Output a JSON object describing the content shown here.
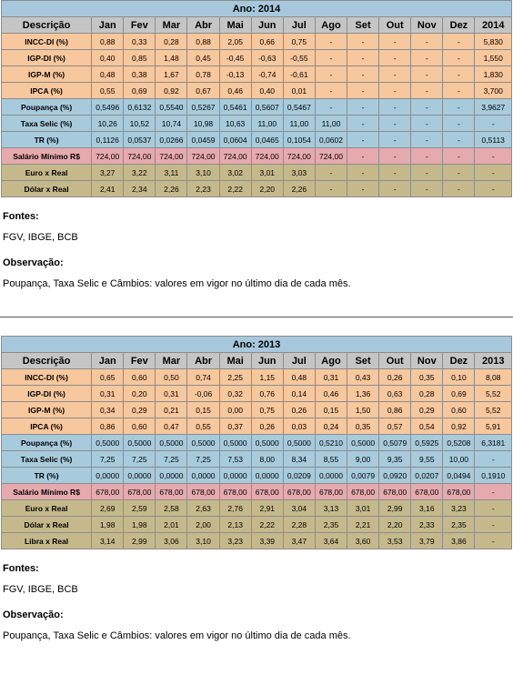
{
  "tables": [
    {
      "title": "Ano: 2014",
      "headers": [
        "Descrição",
        "Jan",
        "Fev",
        "Mar",
        "Abr",
        "Mai",
        "Jun",
        "Jul",
        "Ago",
        "Set",
        "Out",
        "Nov",
        "Dez",
        "2014"
      ],
      "rows": [
        {
          "cls": "orange",
          "cells": [
            "INCC-DI (%)",
            "0,88",
            "0,33",
            "0,28",
            "0,88",
            "2,05",
            "0,66",
            "0,75",
            "-",
            "-",
            "-",
            "-",
            "-",
            "5,830"
          ]
        },
        {
          "cls": "orange",
          "cells": [
            "IGP-DI (%)",
            "0,40",
            "0,85",
            "1,48",
            "0,45",
            "-0,45",
            "-0,63",
            "-0,55",
            "-",
            "-",
            "-",
            "-",
            "-",
            "1,550"
          ]
        },
        {
          "cls": "orange",
          "cells": [
            "IGP-M (%)",
            "0,48",
            "0,38",
            "1,67",
            "0,78",
            "-0,13",
            "-0,74",
            "-0,61",
            "-",
            "-",
            "-",
            "-",
            "-",
            "1,830"
          ]
        },
        {
          "cls": "orange",
          "cells": [
            "IPCA (%)",
            "0,55",
            "0,69",
            "0,92",
            "0,67",
            "0,46",
            "0,40",
            "0,01",
            "-",
            "-",
            "-",
            "-",
            "-",
            "3,700"
          ]
        },
        {
          "cls": "blue",
          "cells": [
            "Poupança (%)",
            "0,5496",
            "0,6132",
            "0,5540",
            "0,5267",
            "0,5461",
            "0,5607",
            "0,5467",
            "-",
            "-",
            "-",
            "-",
            "-",
            "3,9627"
          ]
        },
        {
          "cls": "blue",
          "cells": [
            "Taxa Selic (%)",
            "10,26",
            "10,52",
            "10,74",
            "10,98",
            "10,63",
            "11,00",
            "11,00",
            "11,00",
            "-",
            "-",
            "-",
            "-",
            "-"
          ]
        },
        {
          "cls": "blue",
          "cells": [
            "TR (%)",
            "0,1126",
            "0,0537",
            "0,0266",
            "0,0459",
            "0,0604",
            "0,0465",
            "0,1054",
            "0,0602",
            "-",
            "-",
            "-",
            "-",
            "0,5113"
          ]
        },
        {
          "cls": "pink",
          "cells": [
            "Salário Mínimo R$",
            "724,00",
            "724,00",
            "724,00",
            "724,00",
            "724,00",
            "724,00",
            "724,00",
            "724,00",
            "-",
            "-",
            "-",
            "-",
            "-"
          ]
        },
        {
          "cls": "khaki",
          "cells": [
            "Euro x Real",
            "3,27",
            "3,22",
            "3,11",
            "3,10",
            "3,02",
            "3,01",
            "3,03",
            "-",
            "-",
            "-",
            "-",
            "-",
            "-"
          ]
        },
        {
          "cls": "khaki",
          "cells": [
            "Dólar x Real",
            "2,41",
            "2,34",
            "2,26",
            "2,23",
            "2,22",
            "2,20",
            "2,26",
            "-",
            "-",
            "-",
            "-",
            "-",
            "-"
          ]
        }
      ],
      "fontes_label": "Fontes:",
      "fontes_value": "FGV, IBGE, BCB",
      "obs_label": "Observação:",
      "obs_value": "Poupança, Taxa Selic e Câmbios: valores em vigor no último dia de cada mês."
    },
    {
      "title": "Ano: 2013",
      "headers": [
        "Descrição",
        "Jan",
        "Fev",
        "Mar",
        "Abr",
        "Mai",
        "Jun",
        "Jul",
        "Ago",
        "Set",
        "Out",
        "Nov",
        "Dez",
        "2013"
      ],
      "rows": [
        {
          "cls": "orange",
          "cells": [
            "INCC-DI (%)",
            "0,65",
            "0,60",
            "0,50",
            "0,74",
            "2,25",
            "1,15",
            "0,48",
            "0,31",
            "0,43",
            "0,26",
            "0,35",
            "0,10",
            "8,08"
          ]
        },
        {
          "cls": "orange",
          "cells": [
            "IGP-DI (%)",
            "0,31",
            "0,20",
            "0,31",
            "-0,06",
            "0,32",
            "0,76",
            "0,14",
            "0,46",
            "1,36",
            "0,63",
            "0,28",
            "0,69",
            "5,52"
          ]
        },
        {
          "cls": "orange",
          "cells": [
            "IGP-M (%)",
            "0,34",
            "0,29",
            "0,21",
            "0,15",
            "0,00",
            "0,75",
            "0,26",
            "0,15",
            "1,50",
            "0,86",
            "0,29",
            "0,60",
            "5,52"
          ]
        },
        {
          "cls": "orange",
          "cells": [
            "IPCA (%)",
            "0,86",
            "0,60",
            "0,47",
            "0,55",
            "0,37",
            "0,26",
            "0,03",
            "0,24",
            "0,35",
            "0,57",
            "0,54",
            "0,92",
            "5,91"
          ]
        },
        {
          "cls": "blue",
          "cells": [
            "Poupança (%)",
            "0,5000",
            "0,5000",
            "0,5000",
            "0,5000",
            "0,5000",
            "0,5000",
            "0,5000",
            "0,5210",
            "0,5000",
            "0,5079",
            "0,5925",
            "0,5208",
            "6,3181"
          ]
        },
        {
          "cls": "blue",
          "cells": [
            "Taxa Selic (%)",
            "7,25",
            "7,25",
            "7,25",
            "7,25",
            "7,53",
            "8,00",
            "8,34",
            "8,55",
            "9,00",
            "9,35",
            "9,55",
            "10,00",
            "-"
          ]
        },
        {
          "cls": "blue",
          "cells": [
            "TR (%)",
            "0,0000",
            "0,0000",
            "0,0000",
            "0,0000",
            "0,0000",
            "0,0000",
            "0,0209",
            "0,0000",
            "0,0079",
            "0,0920",
            "0,0207",
            "0,0494",
            "0,1910"
          ]
        },
        {
          "cls": "pink",
          "cells": [
            "Salário Mínimo R$",
            "678,00",
            "678,00",
            "678,00",
            "678,00",
            "678,00",
            "678,00",
            "678,00",
            "678,00",
            "678,00",
            "678,00",
            "678,00",
            "678,00",
            "-"
          ]
        },
        {
          "cls": "khaki",
          "cells": [
            "Euro x Real",
            "2,69",
            "2,59",
            "2,58",
            "2,63",
            "2,76",
            "2,91",
            "3,04",
            "3,13",
            "3,01",
            "2,99",
            "3,16",
            "3,23",
            "-"
          ]
        },
        {
          "cls": "khaki",
          "cells": [
            "Dólar x Real",
            "1,98",
            "1,98",
            "2,01",
            "2,00",
            "2,13",
            "2,22",
            "2,28",
            "2,35",
            "2,21",
            "2,20",
            "2,33",
            "2,35",
            "-"
          ]
        },
        {
          "cls": "khaki",
          "cells": [
            "Libra x Real",
            "3,14",
            "2,99",
            "3,06",
            "3,10",
            "3,23",
            "3,39",
            "3,47",
            "3,64",
            "3,60",
            "3,53",
            "3,79",
            "3,86",
            "-"
          ]
        }
      ],
      "fontes_label": "Fontes:",
      "fontes_value": "FGV, IBGE, BCB",
      "obs_label": "Observação:",
      "obs_value": "Poupança, Taxa Selic e Câmbios: valores em vigor no último dia de cada mês."
    }
  ]
}
